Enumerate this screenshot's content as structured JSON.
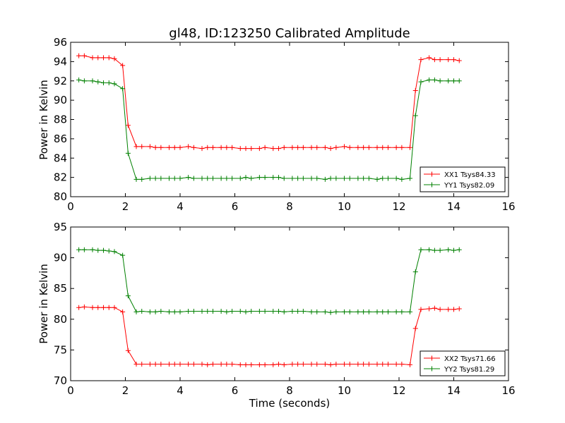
{
  "chart_data": [
    {
      "type": "line",
      "title": "gl48, ID:123250 Calibrated Amplitude",
      "xlabel": "",
      "ylabel": "Power in Kelvin",
      "xlim": [
        0,
        16
      ],
      "ylim": [
        80,
        96
      ],
      "xticks": [
        "0",
        "2",
        "4",
        "6",
        "8",
        "10",
        "12",
        "14",
        "16"
      ],
      "yticks": [
        "80",
        "82",
        "84",
        "86",
        "88",
        "90",
        "92",
        "94",
        "96"
      ],
      "grid": false,
      "legend_position": "bottom-right",
      "x": [
        0.3,
        0.5,
        0.8,
        1.0,
        1.2,
        1.4,
        1.6,
        1.9,
        2.1,
        2.4,
        2.6,
        2.9,
        3.1,
        3.3,
        3.6,
        3.8,
        4.0,
        4.3,
        4.5,
        4.8,
        5.0,
        5.2,
        5.5,
        5.7,
        5.9,
        6.2,
        6.4,
        6.6,
        6.9,
        7.1,
        7.4,
        7.6,
        7.8,
        8.1,
        8.3,
        8.5,
        8.8,
        9.0,
        9.3,
        9.5,
        9.7,
        10.0,
        10.2,
        10.5,
        10.7,
        10.9,
        11.2,
        11.4,
        11.6,
        11.9,
        12.1,
        12.4,
        12.6,
        12.8,
        13.1,
        13.3,
        13.5,
        13.8,
        14.0,
        14.2
      ],
      "series": [
        {
          "name": "XX1 Tsys84.33",
          "color": "#ff0000",
          "values": [
            94.6,
            94.6,
            94.4,
            94.4,
            94.4,
            94.4,
            94.3,
            93.6,
            87.4,
            85.2,
            85.2,
            85.2,
            85.1,
            85.1,
            85.1,
            85.1,
            85.1,
            85.2,
            85.1,
            85.0,
            85.1,
            85.1,
            85.1,
            85.1,
            85.1,
            85.0,
            85.0,
            85.0,
            85.0,
            85.1,
            85.0,
            85.0,
            85.1,
            85.1,
            85.1,
            85.1,
            85.1,
            85.1,
            85.1,
            85.0,
            85.1,
            85.2,
            85.1,
            85.1,
            85.1,
            85.1,
            85.1,
            85.1,
            85.1,
            85.1,
            85.1,
            85.1,
            91.0,
            94.2,
            94.4,
            94.2,
            94.2,
            94.2,
            94.2,
            94.1
          ]
        },
        {
          "name": "YY1 Tsys82.09",
          "color": "#008000",
          "values": [
            92.1,
            92.0,
            92.0,
            91.9,
            91.8,
            91.8,
            91.7,
            91.2,
            84.5,
            81.8,
            81.8,
            81.9,
            81.9,
            81.9,
            81.9,
            81.9,
            81.9,
            82.0,
            81.9,
            81.9,
            81.9,
            81.9,
            81.9,
            81.9,
            81.9,
            81.9,
            82.0,
            81.9,
            82.0,
            82.0,
            82.0,
            82.0,
            81.9,
            81.9,
            81.9,
            81.9,
            81.9,
            81.9,
            81.8,
            81.9,
            81.9,
            81.9,
            81.9,
            81.9,
            81.9,
            81.9,
            81.8,
            81.9,
            81.9,
            81.9,
            81.8,
            81.9,
            88.4,
            91.9,
            92.1,
            92.1,
            92.0,
            92.0,
            92.0,
            92.0
          ]
        }
      ]
    },
    {
      "type": "line",
      "title": "",
      "xlabel": "Time (seconds)",
      "ylabel": "Power in Kelvin",
      "xlim": [
        0,
        16
      ],
      "ylim": [
        70,
        95
      ],
      "xticks": [
        "0",
        "2",
        "4",
        "6",
        "8",
        "10",
        "12",
        "14",
        "16"
      ],
      "yticks": [
        "70",
        "75",
        "80",
        "85",
        "90",
        "95"
      ],
      "grid": false,
      "legend_position": "bottom-right",
      "x": [
        0.3,
        0.5,
        0.8,
        1.0,
        1.2,
        1.4,
        1.6,
        1.9,
        2.1,
        2.4,
        2.6,
        2.9,
        3.1,
        3.3,
        3.6,
        3.8,
        4.0,
        4.3,
        4.5,
        4.8,
        5.0,
        5.2,
        5.5,
        5.7,
        5.9,
        6.2,
        6.4,
        6.6,
        6.9,
        7.1,
        7.4,
        7.6,
        7.8,
        8.1,
        8.3,
        8.5,
        8.8,
        9.0,
        9.3,
        9.5,
        9.7,
        10.0,
        10.2,
        10.5,
        10.7,
        10.9,
        11.2,
        11.4,
        11.6,
        11.9,
        12.1,
        12.4,
        12.6,
        12.8,
        13.1,
        13.3,
        13.5,
        13.8,
        14.0,
        14.2
      ],
      "series": [
        {
          "name": "XX2 Tsys71.66",
          "color": "#ff0000",
          "values": [
            81.9,
            82.0,
            81.9,
            81.9,
            81.9,
            81.9,
            81.9,
            81.2,
            74.9,
            72.7,
            72.7,
            72.7,
            72.7,
            72.7,
            72.7,
            72.7,
            72.7,
            72.7,
            72.7,
            72.7,
            72.6,
            72.7,
            72.7,
            72.7,
            72.7,
            72.6,
            72.6,
            72.6,
            72.6,
            72.6,
            72.6,
            72.7,
            72.6,
            72.7,
            72.7,
            72.7,
            72.7,
            72.7,
            72.7,
            72.6,
            72.7,
            72.7,
            72.7,
            72.7,
            72.7,
            72.7,
            72.7,
            72.7,
            72.7,
            72.7,
            72.7,
            72.6,
            78.5,
            81.6,
            81.7,
            81.8,
            81.6,
            81.6,
            81.6,
            81.7
          ]
        },
        {
          "name": "YY2 Tsys81.29",
          "color": "#008000",
          "values": [
            91.3,
            91.3,
            91.3,
            91.2,
            91.2,
            91.1,
            91.0,
            90.4,
            83.8,
            81.2,
            81.3,
            81.2,
            81.2,
            81.3,
            81.2,
            81.2,
            81.2,
            81.3,
            81.3,
            81.3,
            81.3,
            81.3,
            81.3,
            81.2,
            81.3,
            81.3,
            81.2,
            81.3,
            81.3,
            81.3,
            81.3,
            81.3,
            81.2,
            81.3,
            81.3,
            81.3,
            81.2,
            81.2,
            81.2,
            81.1,
            81.2,
            81.2,
            81.2,
            81.2,
            81.2,
            81.2,
            81.2,
            81.2,
            81.2,
            81.2,
            81.2,
            81.2,
            87.7,
            91.3,
            91.3,
            91.2,
            91.2,
            91.3,
            91.2,
            91.3
          ]
        }
      ]
    }
  ]
}
